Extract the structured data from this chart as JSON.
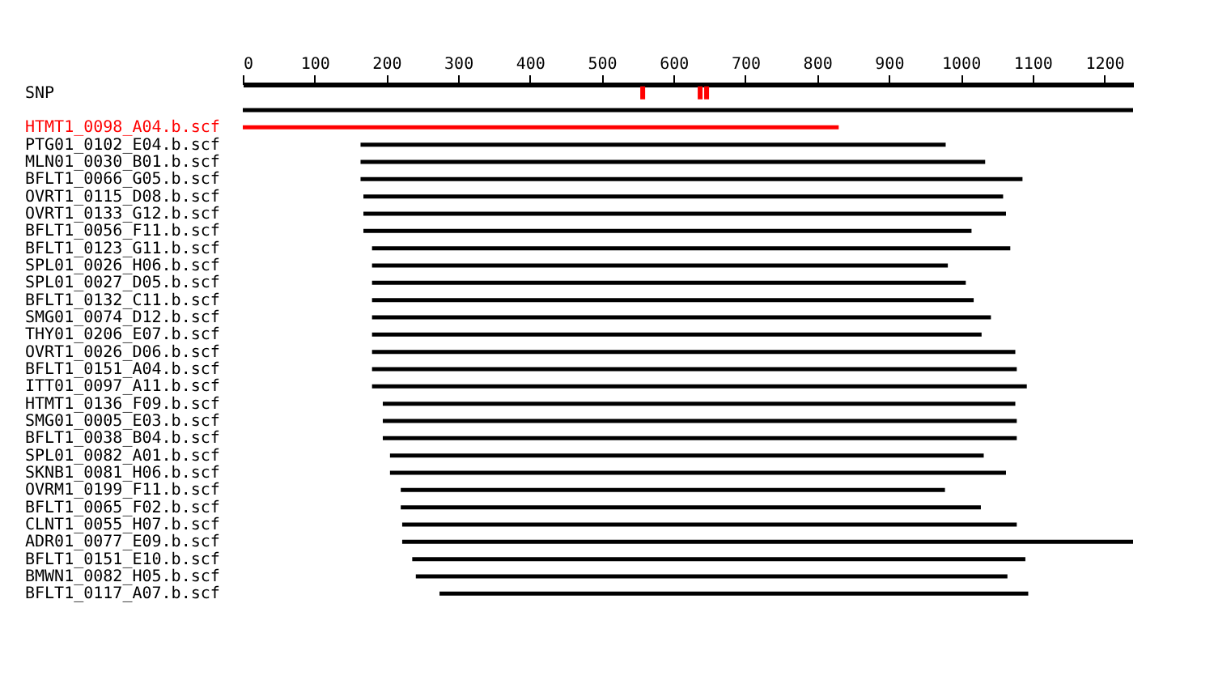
{
  "chart_data": {
    "type": "bar",
    "orientation": "horizontal",
    "categories": [
      "SNP",
      null,
      "HTMT1_0098_A04.b.scf",
      "PTG01_0102_E04.b.scf",
      "MLN01_0030_B01.b.scf",
      "BFLT1_0066_G05.b.scf",
      "OVRT1_0115_D08.b.scf",
      "OVRT1_0133_G12.b.scf",
      "BFLT1_0056_F11.b.scf",
      "BFLT1_0123_G11.b.scf",
      "SPL01_0026_H06.b.scf",
      "SPL01_0027_D05.b.scf",
      "BFLT1_0132_C11.b.scf",
      "SMG01_0074_D12.b.scf",
      "THY01_0206_E07.b.scf",
      "OVRT1_0026_D06.b.scf",
      "BFLT1_0151_A04.b.scf",
      "ITT01_0097_A11.b.scf",
      "HTMT1_0136_F09.b.scf",
      "SMG01_0005_E03.b.scf",
      "BFLT1_0038_B04.b.scf",
      "SPL01_0082_A01.b.scf",
      "SKNB1_0081_H06.b.scf",
      "OVRM1_0199_F11.b.scf",
      "BFLT1_0065_F02.b.scf",
      "CLNT1_0055_H07.b.scf",
      "ADR01_0077_E09.b.scf",
      "BFLT1_0151_E10.b.scf",
      "BMWN1_0082_H05.b.scf",
      "BFLT1_0117_A07.b.scf"
    ],
    "base": [
      null,
      0,
      0,
      164,
      164,
      164,
      168,
      168,
      168,
      180,
      180,
      180,
      180,
      180,
      180,
      180,
      180,
      180,
      195,
      195,
      195,
      205,
      205,
      220,
      220,
      222,
      222,
      236,
      241,
      274
    ],
    "values": [
      null,
      1240,
      830,
      815,
      870,
      922,
      891,
      895,
      847,
      889,
      802,
      827,
      838,
      862,
      849,
      896,
      898,
      912,
      881,
      883,
      883,
      827,
      858,
      758,
      808,
      856,
      1018,
      854,
      824,
      820
    ],
    "colors": [
      "#000000",
      "#000000",
      "#ff0000",
      "#000000",
      "#000000",
      "#000000",
      "#000000",
      "#000000",
      "#000000",
      "#000000",
      "#000000",
      "#000000",
      "#000000",
      "#000000",
      "#000000",
      "#000000",
      "#000000",
      "#000000",
      "#000000",
      "#000000",
      "#000000",
      "#000000",
      "#000000",
      "#000000",
      "#000000",
      "#000000",
      "#000000",
      "#000000",
      "#000000",
      "#000000"
    ],
    "series": [
      {
        "type": "scatter",
        "values": [
          557,
          null,
          null,
          null,
          null,
          null,
          null,
          null,
          null,
          null,
          null,
          null,
          null,
          null,
          null,
          null,
          null,
          null,
          null,
          null,
          null,
          null,
          null,
          null,
          null,
          null,
          null,
          null,
          null,
          null
        ],
        "color": "#ff0000"
      },
      {
        "type": "scatter",
        "values": [
          637,
          null,
          null,
          null,
          null,
          null,
          null,
          null,
          null,
          null,
          null,
          null,
          null,
          null,
          null,
          null,
          null,
          null,
          null,
          null,
          null,
          null,
          null,
          null,
          null,
          null,
          null,
          null,
          null,
          null
        ],
        "color": "#ff0000"
      },
      {
        "type": "scatter",
        "values": [
          646,
          null,
          null,
          null,
          null,
          null,
          null,
          null,
          null,
          null,
          null,
          null,
          null,
          null,
          null,
          null,
          null,
          null,
          null,
          null,
          null,
          null,
          null,
          null,
          null,
          null,
          null,
          null,
          null,
          null
        ],
        "color": "#ff0000"
      }
    ],
    "marker": "square",
    "xlim": [
      0,
      1240
    ],
    "xticks": [
      0,
      100,
      200,
      300,
      400,
      500,
      600,
      700,
      800,
      900,
      1000,
      1100,
      1200
    ],
    "grid": false
  }
}
